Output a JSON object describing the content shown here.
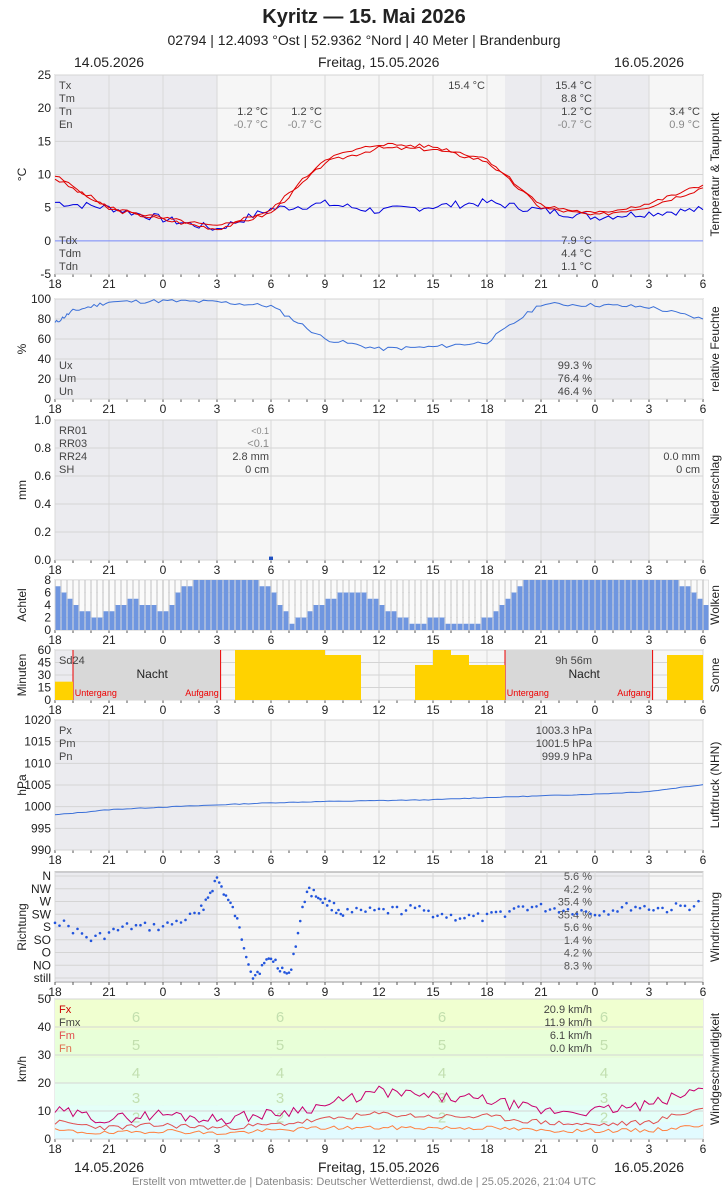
{
  "header": {
    "title": "Kyritz  —  15. Mai 2026",
    "subtitle": "02794  |  12.4093 °Ost  |  52.9362 °Nord  |  40 Meter  |  Brandenburg",
    "date_left": "14.05.2026",
    "date_center": "Freitag, 15.05.2026",
    "date_right": "16.05.2026"
  },
  "footer": "Erstellt von mtwetter.de | Datenbasis: Deutscher Wetterdienst, dwd.de | 25.05.2026, 21:04 UTC",
  "colors": {
    "temp": "#e00000",
    "dew": "#0000dd",
    "humidity": "#3a6fd8",
    "clouds": "#6f96e0",
    "sun": "#ffd200",
    "pressure": "#3a6fd8",
    "wind_fx": "#c8006e",
    "wind_fm": "#e05050"
  },
  "x_ticks": [
    "18",
    "21",
    "0",
    "3",
    "6",
    "9",
    "12",
    "15",
    "18",
    "21",
    "0",
    "3",
    "6"
  ],
  "chart_data": [
    {
      "type": "line",
      "ylabel": "°C",
      "side_label": "Temperatur & Taupunkt",
      "ylim": [
        -5,
        25
      ],
      "yticks": [
        "25",
        "20",
        "15",
        "10",
        "5",
        "0",
        "-5"
      ],
      "legend": {
        "labels": [
          "Tx",
          "Tm",
          "Tn",
          "En"
        ],
        "day1": [
          "",
          "",
          "1.2 °C",
          "-0.7 °C"
        ],
        "day1b": [
          "",
          "",
          "1.2 °C",
          "-0.7 °C"
        ],
        "day2": [
          "15.4 °C",
          "8.8 °C",
          "1.2 °C",
          "-0.7 °C"
        ],
        "day2max": "15.4 °C",
        "day3": [
          "",
          "",
          "3.4 °C",
          "0.9 °C"
        ],
        "dew_labels": [
          "Tdx",
          "Tdm",
          "Tdn"
        ],
        "dew_values": [
          "7.9 °C",
          "4.4 °C",
          "1.1 °C"
        ]
      },
      "series": [
        {
          "name": "Tx",
          "x": [
            0,
            3,
            6,
            9,
            12,
            15,
            18,
            21,
            24,
            27,
            30,
            33,
            36
          ],
          "values": [
            9.8,
            5.0,
            3.4,
            2.1,
            4.6,
            12.4,
            14.6,
            14.2,
            12.4,
            5.3,
            4.1,
            5.6,
            8.4
          ]
        },
        {
          "name": "Tn",
          "x": [
            0,
            3,
            6,
            9,
            12,
            15,
            18,
            21,
            24,
            27,
            30,
            33,
            36
          ],
          "values": [
            9.4,
            4.8,
            3.2,
            1.8,
            4.2,
            11.8,
            14.0,
            13.8,
            12.0,
            5.0,
            3.8,
            5.2,
            8.0
          ]
        },
        {
          "name": "Tdm",
          "x": [
            0,
            3,
            6,
            9,
            12,
            15,
            18,
            21,
            24,
            27,
            30,
            33,
            36
          ],
          "values": [
            5.8,
            5.0,
            3.3,
            1.8,
            4.8,
            5.6,
            4.5,
            5.2,
            5.8,
            4.6,
            3.6,
            4.2,
            4.7
          ]
        }
      ]
    },
    {
      "type": "line",
      "ylabel": "%",
      "side_label": "relative Feuchte",
      "ylim": [
        0,
        100
      ],
      "yticks": [
        "100",
        "80",
        "60",
        "40",
        "20",
        "0"
      ],
      "legend": {
        "labels": [
          "Ux",
          "Um",
          "Un"
        ],
        "values": [
          "99.3 %",
          "76.4 %",
          "46.4 %"
        ]
      },
      "series": [
        {
          "name": "U",
          "x": [
            0,
            1,
            3,
            6,
            9,
            12,
            15,
            18,
            21,
            24,
            27,
            30,
            33,
            36
          ],
          "values": [
            76,
            88,
            97,
            98,
            97,
            93,
            60,
            50,
            52,
            57,
            95,
            94,
            92,
            80
          ]
        }
      ]
    },
    {
      "type": "bar",
      "ylabel": "mm",
      "side_label": "Niederschlag",
      "ylim": [
        0,
        1
      ],
      "yticks": [
        "1.0",
        "0.8",
        "0.6",
        "0.4",
        "0.2",
        "0.0"
      ],
      "legend": {
        "labels": [
          "RR01",
          "RR03",
          "RR24",
          "SH"
        ],
        "day1": [
          "<0.1",
          "<0.1",
          "2.8 mm",
          "0 cm"
        ],
        "day2": [
          "",
          "",
          "0.0 mm",
          "0 cm"
        ]
      },
      "series": [
        {
          "name": "RR01",
          "x": [
            12
          ],
          "values": [
            0.01
          ]
        }
      ]
    },
    {
      "type": "bar",
      "ylabel": "Achtel",
      "side_label": "Wolken",
      "ylim": [
        0,
        8
      ],
      "yticks": [
        "8",
        "6",
        "4",
        "2",
        "0"
      ],
      "series": [
        {
          "name": "N",
          "x": [
            0,
            1,
            2,
            3,
            4,
            5,
            6,
            7,
            8,
            9,
            10,
            11,
            12,
            13,
            14,
            15,
            16,
            17,
            18,
            19,
            20,
            21,
            22,
            23,
            24,
            25,
            26,
            27,
            28,
            29,
            30,
            31,
            32,
            33,
            34,
            35,
            36
          ],
          "values": [
            7,
            4,
            2,
            3,
            5,
            4,
            3,
            7,
            8,
            8,
            8,
            8,
            6,
            1,
            3,
            5,
            6,
            6,
            4,
            2,
            1,
            2,
            1,
            1,
            2,
            5,
            8,
            8,
            8,
            8,
            8,
            8,
            8,
            8,
            8,
            7,
            4
          ]
        }
      ]
    },
    {
      "type": "bar",
      "ylabel": "Minuten",
      "side_label": "Sonne",
      "ylim": [
        0,
        60
      ],
      "yticks": [
        "60",
        "45",
        "30",
        "15",
        "0"
      ],
      "legend": {
        "sd_label": "Sd24",
        "sd_value": "9h 56m",
        "night": "Nacht",
        "sunset": "Untergang",
        "sunrise": "Aufgang"
      },
      "series": [
        {
          "name": "SD",
          "x": [
            0,
            10,
            11,
            12,
            13,
            14,
            15,
            16,
            20,
            21,
            22,
            23,
            24,
            34,
            35
          ],
          "values": [
            22,
            60,
            60,
            60,
            60,
            60,
            54,
            54,
            42,
            60,
            54,
            42,
            42,
            54,
            54
          ]
        }
      ]
    },
    {
      "type": "line",
      "ylabel": "hPa",
      "side_label": "Luftdruck (NHN)",
      "ylim": [
        990,
        1020
      ],
      "yticks": [
        "1020",
        "1015",
        "1010",
        "1005",
        "1000",
        "995",
        "990"
      ],
      "legend": {
        "labels": [
          "Px",
          "Pm",
          "Pn"
        ],
        "values": [
          "1003.3 hPa",
          "1001.5 hPa",
          "999.9 hPa"
        ]
      },
      "series": [
        {
          "name": "P",
          "x": [
            0,
            3,
            6,
            9,
            12,
            15,
            18,
            21,
            24,
            27,
            30,
            33,
            36
          ],
          "values": [
            998.1,
            999.3,
            999.9,
            1000.4,
            1000.9,
            1001.2,
            1001.4,
            1001.6,
            1002.1,
            1002.5,
            1002.9,
            1003.5,
            1005.1
          ]
        }
      ]
    },
    {
      "type": "scatter",
      "ylabel": "Richtung",
      "side_label": "Windrichtung",
      "categories": [
        "N",
        "NW",
        "W",
        "SW",
        "S",
        "SO",
        "O",
        "NO",
        "still"
      ],
      "legend": {
        "values": [
          "5.6 %",
          "4.2 %",
          "35.4 %",
          "35.4 %",
          "5.6 %",
          "1.4 %",
          "4.2 %",
          "8.3 %"
        ]
      },
      "series": [
        {
          "name": "DD",
          "x": [
            0,
            2,
            4,
            6,
            8,
            9,
            10,
            11,
            12,
            13,
            14,
            15,
            16,
            18,
            20,
            22,
            24,
            26,
            28,
            30,
            32,
            34,
            36
          ],
          "values": [
            3.4,
            5.0,
            4.0,
            4.0,
            3.0,
            0.2,
            3.0,
            7.9,
            6.4,
            7.9,
            1.0,
            2.0,
            2.9,
            2.8,
            2.6,
            3.2,
            3.3,
            2.4,
            2.6,
            2.9,
            2.4,
            2.6,
            2.2
          ]
        }
      ]
    },
    {
      "type": "line",
      "ylabel": "km/h",
      "side_label": "Windgeschwindigkeit",
      "ylim": [
        0,
        50
      ],
      "yticks": [
        "50",
        "40",
        "30",
        "20",
        "10",
        "0"
      ],
      "legend": {
        "labels": [
          "Fx",
          "Fmx",
          "Fm",
          "Fn"
        ],
        "values": [
          "20.9 km/h",
          "11.9 km/h",
          "6.1 km/h",
          "0.0 km/h"
        ]
      },
      "bft_labels": [
        "6",
        "5",
        "4",
        "3",
        "2"
      ],
      "series": [
        {
          "name": "Fx",
          "x": [
            0,
            3,
            6,
            9,
            12,
            15,
            18,
            21,
            24,
            27,
            30,
            33,
            36
          ],
          "values": [
            10,
            7,
            9,
            7,
            9,
            12,
            17,
            15,
            14,
            10,
            10,
            12,
            18
          ]
        },
        {
          "name": "Fm",
          "x": [
            0,
            3,
            6,
            9,
            12,
            15,
            18,
            21,
            24,
            27,
            30,
            33,
            36
          ],
          "values": [
            6,
            4,
            5,
            4,
            5,
            7,
            9,
            8,
            8,
            6,
            5,
            6,
            11
          ]
        },
        {
          "name": "Fn",
          "x": [
            0,
            3,
            6,
            9,
            12,
            15,
            18,
            21,
            24,
            27,
            30,
            33,
            36
          ],
          "values": [
            3,
            2,
            3,
            2,
            3,
            4,
            4,
            4,
            4,
            3,
            3,
            3,
            5
          ]
        }
      ]
    }
  ]
}
